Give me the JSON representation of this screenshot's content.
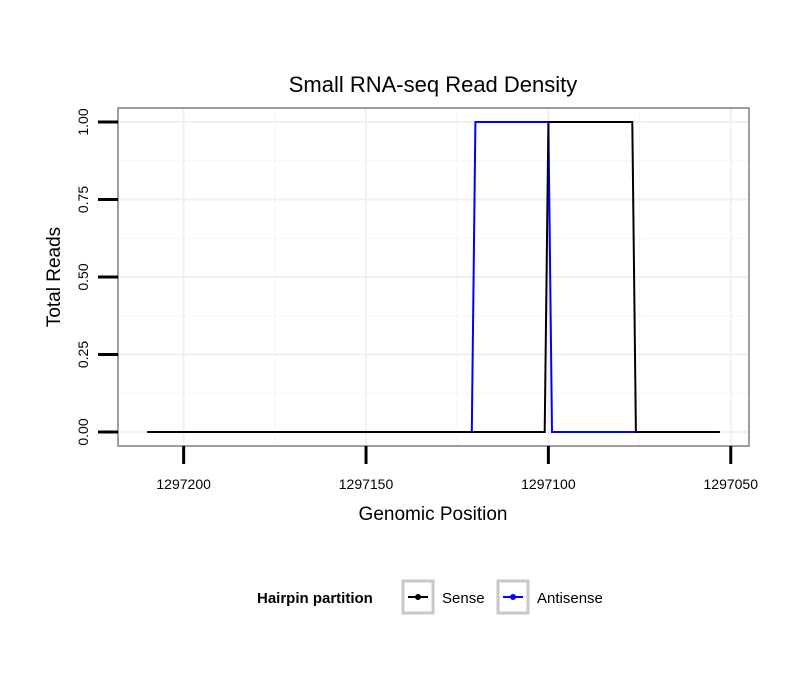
{
  "chart_data": {
    "type": "line",
    "title": "Small RNA-seq Read Density",
    "xlabel": "Genomic Position",
    "ylabel": "Total Reads",
    "x_reversed": true,
    "xlim": [
      1297218,
      1297045
    ],
    "ylim": [
      -0.045,
      1.045
    ],
    "xticks": [
      1297200,
      1297150,
      1297100,
      1297050
    ],
    "xtick_labels": [
      "1297200",
      "1297150",
      "1297100",
      "1297050"
    ],
    "yticks": [
      0,
      0.25,
      0.5,
      0.75,
      1
    ],
    "ytick_labels": [
      "0.00",
      "0.25",
      "0.50",
      "0.75",
      "1.00"
    ],
    "grid": true,
    "series": [
      {
        "name": "Sense",
        "color": "#000000",
        "x": [
          1297210,
          1297101,
          1297100,
          1297077,
          1297076,
          1297053
        ],
        "y": [
          0,
          0,
          1,
          1,
          0,
          0
        ]
      },
      {
        "name": "Antisense",
        "color": "#0000ff",
        "x": [
          1297210,
          1297121,
          1297120,
          1297100,
          1297099,
          1297053
        ],
        "y": [
          0,
          0,
          1,
          1,
          0,
          0
        ]
      }
    ],
    "legend": {
      "title": "Hairpin partition",
      "position": "bottom",
      "entries": [
        "Sense",
        "Antisense"
      ]
    }
  }
}
